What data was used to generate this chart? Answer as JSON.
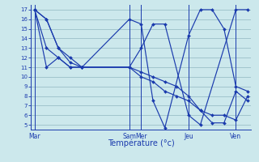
{
  "background_color": "#cce8ec",
  "grid_color": "#9abfc8",
  "line_color": "#1a3aad",
  "xlabel": "Température (°c)",
  "ylim": [
    4.5,
    17.5
  ],
  "yticks": [
    5,
    6,
    7,
    8,
    9,
    10,
    11,
    12,
    13,
    14,
    15,
    16,
    17
  ],
  "day_labels": [
    "Mar",
    "Sam",
    "Mer",
    "Jeu",
    "Ven"
  ],
  "day_x": [
    0,
    8,
    9,
    13,
    17
  ],
  "xlim": [
    -0.3,
    18.3
  ],
  "series": [
    {
      "x": [
        0,
        1,
        2,
        3,
        4,
        8,
        9,
        10,
        11,
        13,
        14,
        17,
        18
      ],
      "y": [
        17,
        16,
        13,
        12,
        11,
        11,
        13,
        15.5,
        15.5,
        6,
        5,
        17,
        17
      ]
    },
    {
      "x": [
        0,
        1,
        2,
        3,
        4,
        8,
        9,
        10,
        11,
        12,
        13,
        14,
        15,
        16,
        17,
        18
      ],
      "y": [
        17,
        16,
        13,
        11.5,
        11,
        11,
        10,
        9.5,
        8.5,
        8,
        7.5,
        6.5,
        6,
        6,
        5.5,
        8
      ]
    },
    {
      "x": [
        0,
        1,
        2,
        3,
        4,
        8,
        9,
        10,
        11,
        12,
        13,
        14,
        15,
        16,
        17,
        18
      ],
      "y": [
        17,
        11,
        12,
        11,
        11,
        11,
        10.5,
        10,
        9.5,
        9,
        8,
        6.5,
        5.2,
        5.2,
        8.5,
        7.5
      ]
    },
    {
      "x": [
        0,
        1,
        2,
        3,
        4,
        8,
        9,
        10,
        11,
        13,
        14,
        15,
        16,
        17,
        18
      ],
      "y": [
        17,
        13,
        12,
        11,
        11,
        16,
        15.5,
        7.5,
        4.7,
        14.3,
        17,
        17,
        15,
        9,
        8.5
      ]
    }
  ]
}
